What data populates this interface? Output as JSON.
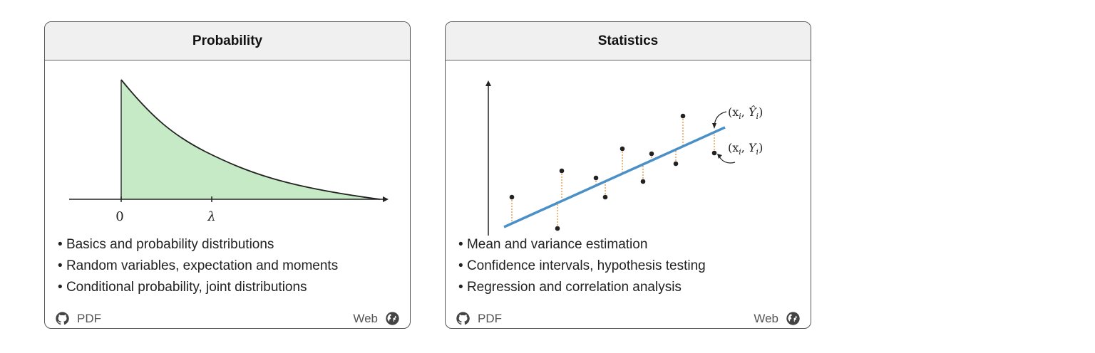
{
  "cards": [
    {
      "title": "Probability",
      "figure": {
        "tick_zero": "0",
        "tick_lambda": "λ"
      },
      "bullets": [
        "Basics and probability distributions",
        "Random variables, expectation and moments",
        "Conditional probability, joint distributions"
      ],
      "pdf_label": "PDF",
      "web_label": "Web"
    },
    {
      "title": "Statistics",
      "figure": {
        "label_fitted": "(x",
        "label_observed": "(x"
      },
      "bullets": [
        "Mean and variance estimation",
        "Confidence intervals, hypothesis testing",
        "Regression and correlation analysis"
      ],
      "pdf_label": "PDF",
      "web_label": "Web"
    }
  ],
  "icons": {
    "pdf": "github-icon",
    "web": "globe-icon"
  },
  "colors": {
    "fill": "#c6e9c6",
    "regression_line": "#4a90c8",
    "residual": "#f0a050",
    "header_bg": "#f0f0f0"
  }
}
